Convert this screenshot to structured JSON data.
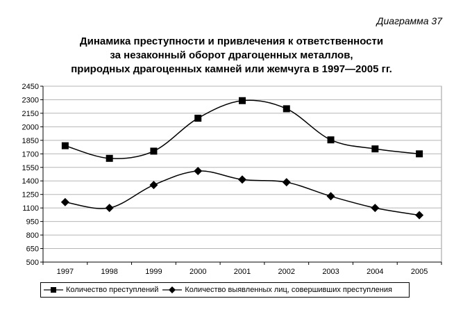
{
  "diagram_label": "Диаграмма 37",
  "title_lines": [
    "Динамика преступности и привлечения к ответственности",
    "за незаконный оборот драгоценных металлов,",
    "природных драгоценных камней или жемчуга в 1997—2005 гг."
  ],
  "chart_data": {
    "type": "line",
    "title": "Динамика преступности и привлечения к ответственности за незаконный оборот драгоценных металлов, природных драгоценных камней или жемчуга в 1997—2005 гг.",
    "categories": [
      "1997",
      "1998",
      "1999",
      "2000",
      "2001",
      "2002",
      "2003",
      "2004",
      "2005"
    ],
    "ylim": [
      500,
      2450
    ],
    "yticks": [
      500,
      650,
      800,
      950,
      1100,
      1250,
      1400,
      1550,
      1700,
      1850,
      2000,
      2150,
      2300,
      2450
    ],
    "grid": true,
    "smooth": true,
    "legend_position": "bottom",
    "series": [
      {
        "name": "Количество преступлений",
        "marker": "square",
        "values": [
          1790,
          1650,
          1730,
          2095,
          2290,
          2200,
          1855,
          1755,
          1700
        ]
      },
      {
        "name": "Количество выявленных лиц, совершивших преступления",
        "marker": "diamond",
        "values": [
          1165,
          1100,
          1355,
          1510,
          1415,
          1385,
          1230,
          1100,
          1020
        ]
      }
    ]
  }
}
